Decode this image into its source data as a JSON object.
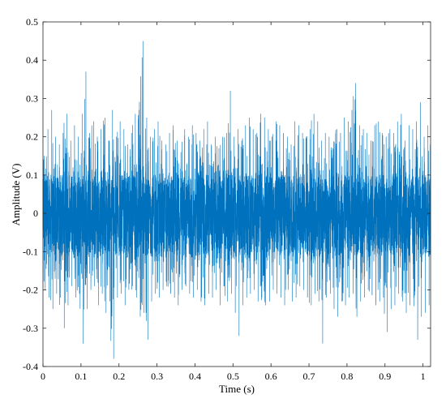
{
  "chart_data": {
    "type": "line",
    "title": "",
    "xlabel": "Time (s)",
    "ylabel": "Amplitude (V)",
    "xlim": [
      0,
      1.02
    ],
    "ylim": [
      -0.4,
      0.5
    ],
    "xticks": [
      "0",
      "0.1",
      "0.2",
      "0.3",
      "0.4",
      "0.5",
      "0.6",
      "0.7",
      "0.8",
      "0.9",
      "1"
    ],
    "yticks": [
      "-0.4",
      "-0.3",
      "-0.2",
      "-0.1",
      "0",
      "0.1",
      "0.2",
      "0.3",
      "0.4",
      "0.5"
    ],
    "grid": false,
    "legend": "none",
    "line_color": "#0072BD",
    "series": [
      {
        "x": [
          0,
          0.01,
          0.02,
          0.03,
          0.04,
          0.05,
          0.06,
          0.07,
          0.08,
          0.09,
          0.1,
          0.11,
          0.12,
          0.13,
          0.14,
          0.15,
          0.16,
          0.17,
          0.18,
          0.19,
          0.2,
          0.21,
          0.22,
          0.23,
          0.24,
          0.25,
          0.26,
          0.27,
          0.28,
          0.29,
          0.3,
          0.31,
          0.32,
          0.33,
          0.34,
          0.35,
          0.36,
          0.37,
          0.38,
          0.39,
          0.4,
          0.41,
          0.42,
          0.43,
          0.44,
          0.45,
          0.46,
          0.47,
          0.48,
          0.49,
          0.5,
          0.51,
          0.52,
          0.53,
          0.54,
          0.55,
          0.56,
          0.57,
          0.58,
          0.59,
          0.6,
          0.61,
          0.62,
          0.63,
          0.64,
          0.65,
          0.66,
          0.67,
          0.68,
          0.69,
          0.7,
          0.71,
          0.72,
          0.73,
          0.74,
          0.75,
          0.76,
          0.77,
          0.78,
          0.79,
          0.8,
          0.81,
          0.82,
          0.83,
          0.84,
          0.85,
          0.86,
          0.87,
          0.88,
          0.89,
          0.9,
          0.91,
          0.92,
          0.93,
          0.94,
          0.95,
          0.96,
          0.97,
          0.98,
          0.99,
          1.0,
          1.01,
          1.02
        ],
        "y_max": [
          0.15,
          0.22,
          0.27,
          0.2,
          0.18,
          0.21,
          0.26,
          0.19,
          0.23,
          0.2,
          0.26,
          0.37,
          0.21,
          0.24,
          0.2,
          0.22,
          0.25,
          0.19,
          0.27,
          0.2,
          0.24,
          0.22,
          0.18,
          0.21,
          0.26,
          0.27,
          0.45,
          0.25,
          0.2,
          0.22,
          0.24,
          0.19,
          0.18,
          0.21,
          0.23,
          0.19,
          0.16,
          0.22,
          0.2,
          0.23,
          0.21,
          0.19,
          0.22,
          0.24,
          0.18,
          0.2,
          0.17,
          0.2,
          0.21,
          0.32,
          0.2,
          0.22,
          0.19,
          0.23,
          0.25,
          0.22,
          0.21,
          0.26,
          0.25,
          0.22,
          0.2,
          0.24,
          0.23,
          0.21,
          0.2,
          0.18,
          0.24,
          0.23,
          0.21,
          0.2,
          0.22,
          0.26,
          0.24,
          0.19,
          0.21,
          0.2,
          0.17,
          0.22,
          0.21,
          0.25,
          0.24,
          0.27,
          0.34,
          0.23,
          0.22,
          0.21,
          0.19,
          0.23,
          0.24,
          0.21,
          0.2,
          0.22,
          0.21,
          0.24,
          0.26,
          0.19,
          0.23,
          0.22,
          0.24,
          0.29,
          0.2,
          0.23,
          0.19
        ],
        "y_min": [
          -0.2,
          -0.22,
          -0.25,
          -0.21,
          -0.22,
          -0.3,
          -0.24,
          -0.19,
          -0.22,
          -0.21,
          -0.34,
          -0.25,
          -0.2,
          -0.19,
          -0.24,
          -0.21,
          -0.26,
          -0.23,
          -0.38,
          -0.22,
          -0.21,
          -0.24,
          -0.2,
          -0.19,
          -0.22,
          -0.27,
          -0.26,
          -0.33,
          -0.23,
          -0.21,
          -0.22,
          -0.2,
          -0.19,
          -0.21,
          -0.22,
          -0.24,
          -0.2,
          -0.19,
          -0.21,
          -0.22,
          -0.2,
          -0.23,
          -0.24,
          -0.21,
          -0.22,
          -0.2,
          -0.24,
          -0.19,
          -0.23,
          -0.21,
          -0.26,
          -0.32,
          -0.24,
          -0.22,
          -0.21,
          -0.2,
          -0.23,
          -0.22,
          -0.24,
          -0.23,
          -0.2,
          -0.21,
          -0.22,
          -0.24,
          -0.2,
          -0.23,
          -0.22,
          -0.19,
          -0.2,
          -0.22,
          -0.24,
          -0.21,
          -0.23,
          -0.34,
          -0.22,
          -0.21,
          -0.25,
          -0.27,
          -0.23,
          -0.24,
          -0.22,
          -0.21,
          -0.27,
          -0.23,
          -0.22,
          -0.2,
          -0.21,
          -0.24,
          -0.23,
          -0.22,
          -0.31,
          -0.25,
          -0.24,
          -0.21,
          -0.23,
          -0.26,
          -0.24,
          -0.22,
          -0.33,
          -0.27,
          -0.26,
          -0.24,
          -0.21
        ],
        "core_max": [
          0.09,
          0.1,
          0.09,
          0.1,
          0.09,
          0.1,
          0.09,
          0.1,
          0.09,
          0.1,
          0.1,
          0.11,
          0.1,
          0.09,
          0.1,
          0.1,
          0.09,
          0.1,
          0.1,
          0.09,
          0.1,
          0.1,
          0.09,
          0.1,
          0.1,
          0.11,
          0.11,
          0.1,
          0.09,
          0.1,
          0.1,
          0.09,
          0.1,
          0.1,
          0.09,
          0.1,
          0.09,
          0.1,
          0.1,
          0.09,
          0.1,
          0.1,
          0.09,
          0.1,
          0.09,
          0.1,
          0.09,
          0.1,
          0.1,
          0.1,
          0.1,
          0.09,
          0.1,
          0.1,
          0.09,
          0.1,
          0.1,
          0.1,
          0.09,
          0.1,
          0.1,
          0.09,
          0.1,
          0.1,
          0.09,
          0.1,
          0.1,
          0.09,
          0.1,
          0.1,
          0.1,
          0.1,
          0.09,
          0.1,
          0.1,
          0.09,
          0.1,
          0.1,
          0.09,
          0.1,
          0.1,
          0.1,
          0.11,
          0.1,
          0.09,
          0.1,
          0.1,
          0.09,
          0.1,
          0.1,
          0.1,
          0.09,
          0.1,
          0.1,
          0.1,
          0.09,
          0.1,
          0.1,
          0.1,
          0.1,
          0.1,
          0.09,
          0.1
        ],
        "core_min": [
          -0.1,
          -0.11,
          -0.1,
          -0.11,
          -0.1,
          -0.11,
          -0.1,
          -0.11,
          -0.1,
          -0.11,
          -0.11,
          -0.1,
          -0.11,
          -0.1,
          -0.11,
          -0.1,
          -0.11,
          -0.1,
          -0.11,
          -0.1,
          -0.11,
          -0.1,
          -0.11,
          -0.1,
          -0.11,
          -0.11,
          -0.1,
          -0.11,
          -0.1,
          -0.11,
          -0.1,
          -0.11,
          -0.1,
          -0.11,
          -0.1,
          -0.11,
          -0.1,
          -0.11,
          -0.1,
          -0.11,
          -0.1,
          -0.11,
          -0.1,
          -0.11,
          -0.1,
          -0.11,
          -0.1,
          -0.11,
          -0.1,
          -0.11,
          -0.11,
          -0.1,
          -0.11,
          -0.1,
          -0.11,
          -0.1,
          -0.11,
          -0.1,
          -0.11,
          -0.1,
          -0.11,
          -0.1,
          -0.11,
          -0.1,
          -0.11,
          -0.1,
          -0.11,
          -0.1,
          -0.11,
          -0.1,
          -0.11,
          -0.1,
          -0.11,
          -0.1,
          -0.11,
          -0.1,
          -0.11,
          -0.1,
          -0.11,
          -0.1,
          -0.11,
          -0.1,
          -0.11,
          -0.1,
          -0.11,
          -0.1,
          -0.11,
          -0.1,
          -0.11,
          -0.1,
          -0.11,
          -0.1,
          -0.11,
          -0.1,
          -0.11,
          -0.1,
          -0.11,
          -0.1,
          -0.11,
          -0.1,
          -0.11,
          -0.1,
          -0.11
        ]
      }
    ]
  }
}
